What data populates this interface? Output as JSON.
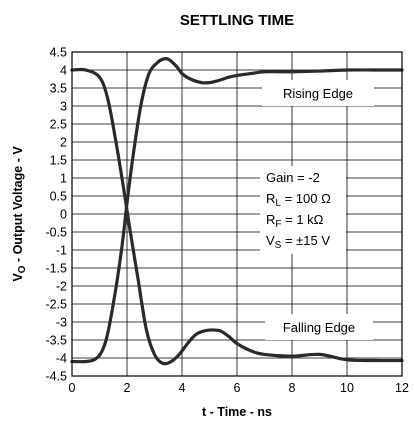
{
  "chart_data": {
    "type": "line",
    "title": "SETTLING TIME",
    "xlabel": "t - Time - ns",
    "ylabel": {
      "main": "V",
      "sub": "O",
      "rest": " - Output Voltage - V"
    },
    "xlim": [
      0,
      12
    ],
    "ylim": [
      -4.5,
      4.5
    ],
    "xticks": [
      "0",
      "2",
      "4",
      "6",
      "8",
      "10",
      "12"
    ],
    "yticks": [
      "4.5",
      "4",
      "3.5",
      "3",
      "2.5",
      "2",
      "1.5",
      "1",
      "0.5",
      "0",
      "-0.5",
      "-1",
      "-1.5",
      "-2",
      "-2.5",
      "-3",
      "-3.5",
      "-4",
      "-4.5"
    ],
    "grid": true,
    "line_color": "#2a2a2a",
    "series": [
      {
        "name": "Rising Edge",
        "x": [
          0,
          0.8,
          1.2,
          1.5,
          1.8,
          2.0,
          2.2,
          2.5,
          2.8,
          3.1,
          3.3,
          3.5,
          3.8,
          4.0,
          4.3,
          4.7,
          5.0,
          5.3,
          5.7,
          6.0,
          6.5,
          7.0,
          8.0,
          9.0,
          10.0,
          11.0,
          12.0
        ],
        "y": [
          -4.1,
          -4.05,
          -3.6,
          -2.5,
          -1.0,
          0.3,
          1.5,
          3.0,
          3.9,
          4.2,
          4.3,
          4.3,
          4.1,
          3.9,
          3.75,
          3.65,
          3.65,
          3.7,
          3.8,
          3.85,
          3.9,
          3.95,
          3.95,
          3.97,
          4.0,
          4.0,
          4.0
        ]
      },
      {
        "name": "Falling Edge",
        "x": [
          0,
          0.5,
          1.0,
          1.3,
          1.6,
          1.9,
          2.1,
          2.4,
          2.7,
          3.0,
          3.3,
          3.6,
          3.9,
          4.2,
          4.5,
          4.8,
          5.1,
          5.4,
          5.7,
          6.0,
          6.5,
          7.0,
          8.0,
          9.0,
          10.0,
          11.0,
          12.0
        ],
        "y": [
          4.0,
          4.0,
          3.8,
          3.2,
          2.0,
          0.6,
          -0.4,
          -1.8,
          -3.2,
          -3.9,
          -4.15,
          -4.1,
          -3.9,
          -3.6,
          -3.35,
          -3.25,
          -3.22,
          -3.25,
          -3.4,
          -3.6,
          -3.8,
          -3.9,
          -3.95,
          -3.9,
          -4.05,
          -4.07,
          -4.07
        ]
      }
    ],
    "annotations": {
      "rising_edge": "Rising Edge",
      "falling_edge": "Falling Edge",
      "gain": "Gain = -2",
      "rl": {
        "main": "R",
        "sub": "L",
        "rest": " = 100 Ω"
      },
      "rf": {
        "main": "R",
        "sub": "F",
        "rest": " = 1 kΩ"
      },
      "vs": {
        "main": "V",
        "sub": "S",
        "rest": " = ±15 V"
      }
    }
  }
}
